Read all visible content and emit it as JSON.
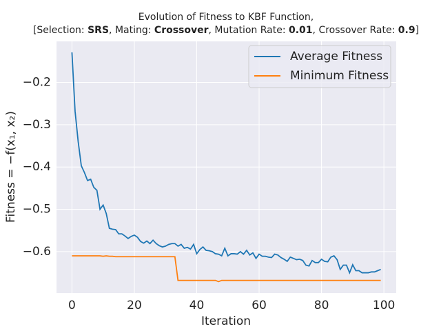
{
  "chart_data": {
    "type": "line",
    "title": "Evolution of Fitness to KBF Function,",
    "subtitle_parts": [
      "[Selection: ",
      "SRS",
      ", Mating: ",
      "Crossover",
      ", Mutation Rate: ",
      "0.01",
      ", Crossover Rate: ",
      "0.9",
      "]"
    ],
    "xlabel": "Iteration",
    "ylabel": "Fitness = −f(x₁, x₂)",
    "x": [
      0,
      1,
      2,
      3,
      4,
      5,
      6,
      7,
      8,
      9,
      10,
      11,
      12,
      13,
      14,
      15,
      16,
      17,
      18,
      19,
      20,
      21,
      22,
      23,
      24,
      25,
      26,
      27,
      28,
      29,
      30,
      31,
      32,
      33,
      34,
      35,
      36,
      37,
      38,
      39,
      40,
      41,
      42,
      43,
      44,
      45,
      46,
      47,
      48,
      49,
      50,
      51,
      52,
      53,
      54,
      55,
      56,
      57,
      58,
      59,
      60,
      61,
      62,
      63,
      64,
      65,
      66,
      67,
      68,
      69,
      70,
      71,
      72,
      73,
      74,
      75,
      76,
      77,
      78,
      79,
      80,
      81,
      82,
      83,
      84,
      85,
      86,
      87,
      88,
      89,
      90,
      91,
      92,
      93,
      94,
      95,
      96,
      97,
      98,
      99
    ],
    "series": [
      {
        "name": "Average Fitness",
        "color": "#1f77b4",
        "values": [
          -0.129,
          -0.268,
          -0.34,
          -0.397,
          -0.413,
          -0.432,
          -0.429,
          -0.448,
          -0.455,
          -0.5,
          -0.49,
          -0.51,
          -0.545,
          -0.547,
          -0.548,
          -0.558,
          -0.558,
          -0.563,
          -0.569,
          -0.564,
          -0.561,
          -0.566,
          -0.576,
          -0.58,
          -0.575,
          -0.581,
          -0.573,
          -0.581,
          -0.586,
          -0.589,
          -0.587,
          -0.583,
          -0.581,
          -0.581,
          -0.587,
          -0.583,
          -0.592,
          -0.59,
          -0.594,
          -0.583,
          -0.605,
          -0.595,
          -0.589,
          -0.597,
          -0.598,
          -0.6,
          -0.605,
          -0.606,
          -0.61,
          -0.592,
          -0.61,
          -0.605,
          -0.605,
          -0.606,
          -0.6,
          -0.606,
          -0.597,
          -0.608,
          -0.603,
          -0.616,
          -0.606,
          -0.611,
          -0.611,
          -0.613,
          -0.614,
          -0.606,
          -0.608,
          -0.614,
          -0.618,
          -0.623,
          -0.613,
          -0.616,
          -0.619,
          -0.618,
          -0.621,
          -0.632,
          -0.634,
          -0.621,
          -0.626,
          -0.626,
          -0.618,
          -0.623,
          -0.624,
          -0.613,
          -0.61,
          -0.619,
          -0.642,
          -0.632,
          -0.632,
          -0.65,
          -0.631,
          -0.645,
          -0.645,
          -0.65,
          -0.65,
          -0.65,
          -0.648,
          -0.648,
          -0.645,
          -0.642
        ]
      },
      {
        "name": "Minimum Fitness",
        "color": "#ff7f0e",
        "values": [
          -0.61,
          -0.61,
          -0.61,
          -0.61,
          -0.61,
          -0.61,
          -0.61,
          -0.61,
          -0.61,
          -0.61,
          -0.611,
          -0.61,
          -0.611,
          -0.611,
          -0.612,
          -0.612,
          -0.612,
          -0.612,
          -0.612,
          -0.612,
          -0.612,
          -0.612,
          -0.612,
          -0.612,
          -0.612,
          -0.612,
          -0.612,
          -0.612,
          -0.612,
          -0.612,
          -0.612,
          -0.612,
          -0.612,
          -0.612,
          -0.668,
          -0.668,
          -0.668,
          -0.668,
          -0.668,
          -0.668,
          -0.668,
          -0.668,
          -0.668,
          -0.668,
          -0.668,
          -0.668,
          -0.668,
          -0.671,
          -0.668,
          -0.668,
          -0.668,
          -0.668,
          -0.668,
          -0.668,
          -0.668,
          -0.668,
          -0.668,
          -0.668,
          -0.668,
          -0.668,
          -0.668,
          -0.668,
          -0.668,
          -0.668,
          -0.668,
          -0.668,
          -0.668,
          -0.668,
          -0.668,
          -0.668,
          -0.668,
          -0.668,
          -0.668,
          -0.668,
          -0.668,
          -0.668,
          -0.668,
          -0.668,
          -0.668,
          -0.668,
          -0.668,
          -0.668,
          -0.668,
          -0.668,
          -0.668,
          -0.668,
          -0.668,
          -0.668,
          -0.668,
          -0.668,
          -0.668,
          -0.668,
          -0.668,
          -0.668,
          -0.668,
          -0.668,
          -0.668,
          -0.668,
          -0.668,
          -0.668
        ]
      }
    ],
    "xlim": [
      -4.95,
      103.95
    ],
    "xticks": [
      0,
      20,
      40,
      60,
      80,
      100
    ],
    "ylim": [
      -0.698,
      -0.103
    ],
    "yticks": [
      {
        "value": -0.2,
        "label": "−0.2"
      },
      {
        "value": -0.3,
        "label": "−0.3"
      },
      {
        "value": -0.4,
        "label": "−0.4"
      },
      {
        "value": -0.5,
        "label": "−0.5"
      },
      {
        "value": -0.6,
        "label": "−0.6"
      }
    ],
    "grid": true,
    "legend": "upper right"
  }
}
